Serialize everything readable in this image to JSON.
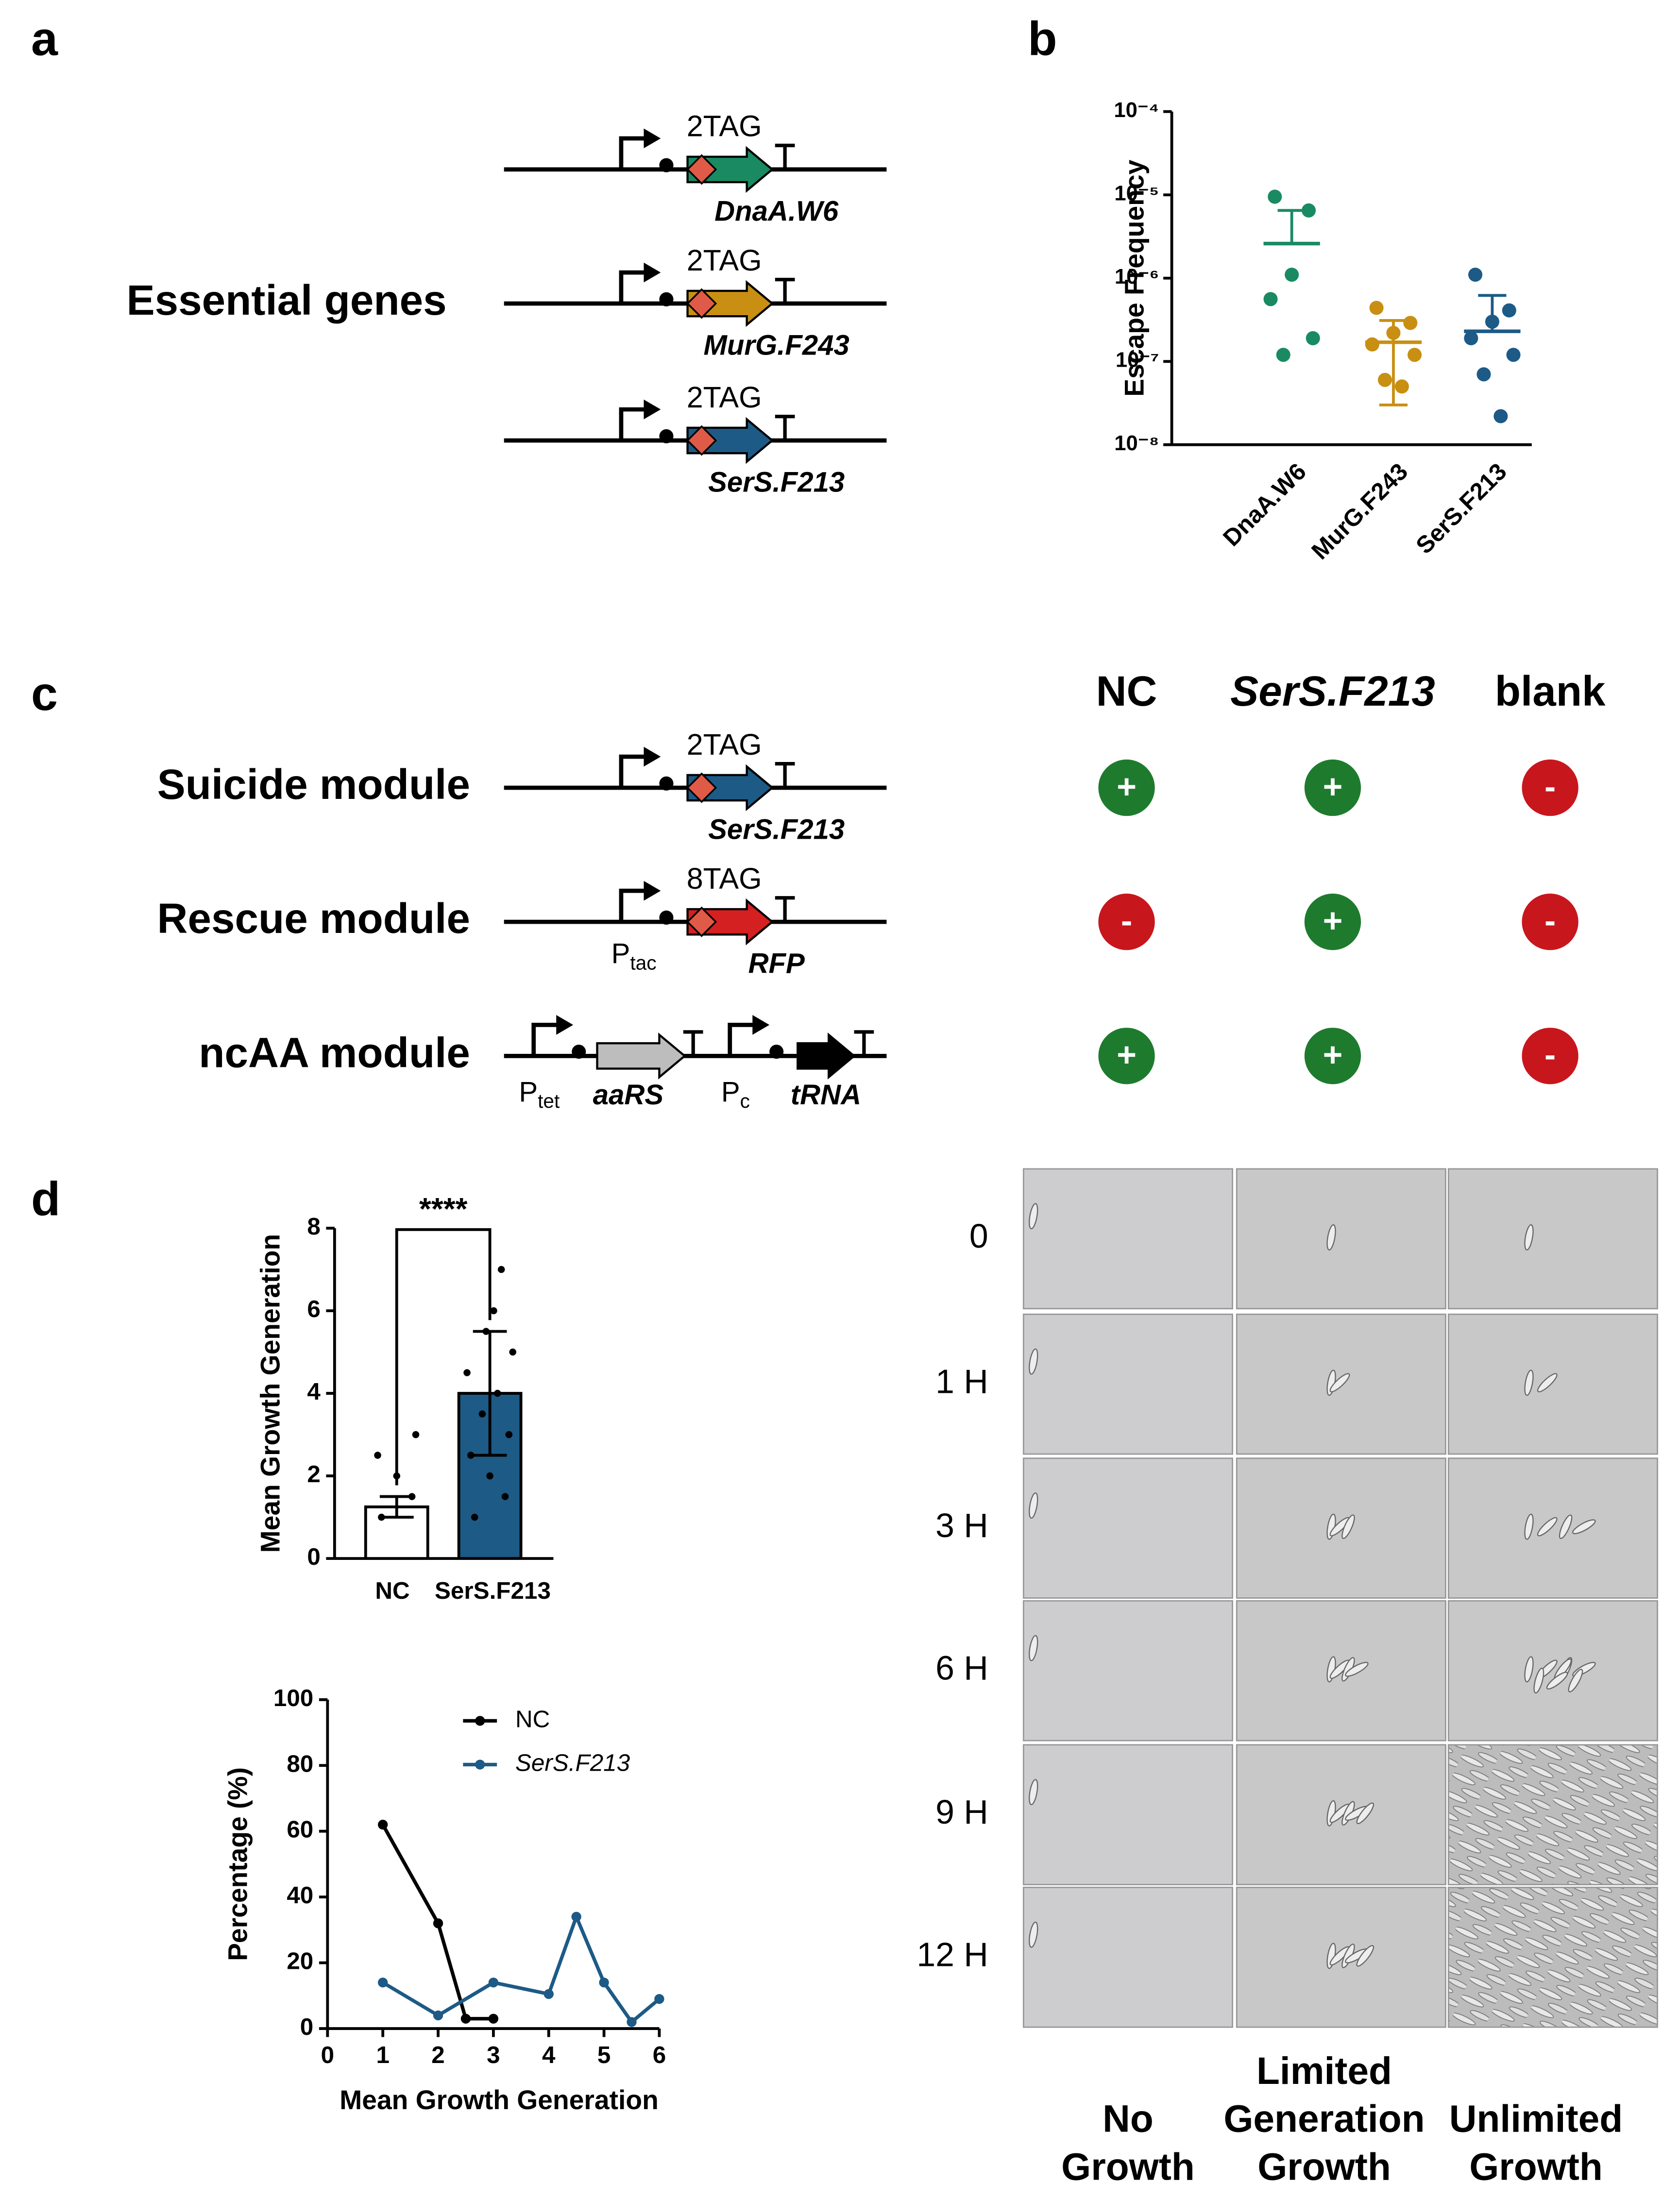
{
  "panel_labels": [
    "a",
    "b",
    "c",
    "d"
  ],
  "panel_a": {
    "title": "Essential genes",
    "constructs": [
      {
        "tag": "2TAG",
        "gene": "DnaA.W6",
        "color": "#1a8a62"
      },
      {
        "tag": "2TAG",
        "gene": "MurG.F243",
        "color": "#c88f12"
      },
      {
        "tag": "2TAG",
        "gene": "SerS.F213",
        "color": "#1d5a86"
      }
    ]
  },
  "panel_c": {
    "modules": [
      {
        "name": "Suicide module",
        "tag": "2TAG",
        "gene": "SerS.F213",
        "color": "#1d5a86"
      },
      {
        "name": "Rescue module",
        "tag": "8TAG",
        "gene": "RFP",
        "color": "#d42020",
        "promoter": {
          "main": "P",
          "sub": "tac"
        }
      },
      {
        "name": "ncAA module",
        "parts": [
          {
            "promoter": {
              "main": "P",
              "sub": "tet"
            },
            "gene": "aaRS",
            "color": "#bdbdbd"
          },
          {
            "promoter": {
              "main": "P",
              "sub": "c"
            },
            "gene": "tRNA",
            "color": "#000000"
          }
        ]
      }
    ],
    "table": {
      "columns": [
        "NC",
        "SerS.F213",
        "blank"
      ],
      "rows": [
        [
          "+",
          "+",
          "-"
        ],
        [
          "-",
          "+",
          "-"
        ],
        [
          "+",
          "+",
          "-"
        ]
      ],
      "positive_color": "#1e7b2e",
      "negative_color": "#c8161d"
    }
  },
  "chart_data": [
    {
      "type": "scatter",
      "y_label": "Escape Frequency",
      "log_y": true,
      "ylim": [
        1e-08,
        0.0001
      ],
      "yticks": [
        {
          "value": 1e-08,
          "label": "10⁻⁸"
        },
        {
          "value": 1e-07,
          "label": "10⁻⁷"
        },
        {
          "value": 1e-06,
          "label": "10⁻⁶"
        },
        {
          "value": 1e-05,
          "label": "10⁻⁵"
        },
        {
          "value": 0.0001,
          "label": "10⁻⁴"
        }
      ],
      "categories": [
        "DnaA.W6",
        "MurG.F243",
        "SerS.F213"
      ],
      "colors": [
        "#1a8a62",
        "#c88f12",
        "#1d5a86"
      ],
      "values": [
        [
          9.5e-06,
          6.5e-06,
          1.1e-06,
          5.6e-07,
          1.9e-07,
          1.2e-07
        ],
        [
          4.4e-07,
          2.9e-07,
          2.2e-07,
          1.6e-07,
          1.2e-07,
          6e-08,
          5e-08
        ],
        [
          1.1e-06,
          4.1e-07,
          3e-07,
          1.9e-07,
          1.2e-07,
          7e-08,
          2.2e-08
        ]
      ],
      "means": [
        2.6e-06,
        1.7e-07,
        2.3e-07
      ],
      "sd": [
        3.9e-06,
        1.4e-07,
        3.9e-07
      ]
    },
    {
      "type": "bar",
      "y_label": "Mean Growth Generation",
      "categories": [
        "NC",
        "SerS.F213"
      ],
      "values": [
        1.25,
        4.0
      ],
      "sd": [
        0.25,
        1.5
      ],
      "colors": [
        "#ffffff",
        "#1d5a86"
      ],
      "points": [
        [
          1,
          1.5,
          2,
          2.5,
          3
        ],
        [
          1,
          1.5,
          2,
          2.5,
          3,
          3.5,
          4,
          4.5,
          5,
          5.5,
          6,
          7
        ]
      ],
      "ylim": [
        0,
        8
      ],
      "yticks": [
        0,
        2,
        4,
        6,
        8
      ],
      "annotation": "****"
    },
    {
      "type": "line",
      "x_label": "Mean Growth Generation",
      "y_label": "Percentage (%)",
      "xlim": [
        0,
        6
      ],
      "xticks": [
        0,
        1,
        2,
        3,
        4,
        5,
        6
      ],
      "ylim": [
        0,
        100
      ],
      "yticks": [
        0,
        20,
        40,
        60,
        80,
        100
      ],
      "series": [
        {
          "name": "NC",
          "color": "#000000",
          "x": [
            1,
            2,
            2.5,
            3
          ],
          "values": [
            62,
            32,
            3,
            3
          ]
        },
        {
          "name": "SerS.F213",
          "color": "#1d5a86",
          "italic": true,
          "x": [
            1,
            2,
            3,
            4,
            4.5,
            5,
            5.5,
            6
          ],
          "values": [
            14,
            4,
            14,
            10.5,
            34,
            14,
            2,
            9
          ]
        }
      ]
    }
  ],
  "microscopy": {
    "rows": [
      "0",
      "1 H",
      "3 H",
      "6 H",
      "9 H",
      "12 H"
    ],
    "columns": [
      [
        "No",
        "Growth"
      ],
      [
        "Limited",
        "Generation",
        "Growth"
      ],
      [
        "Unlimited",
        "Growth"
      ]
    ]
  }
}
